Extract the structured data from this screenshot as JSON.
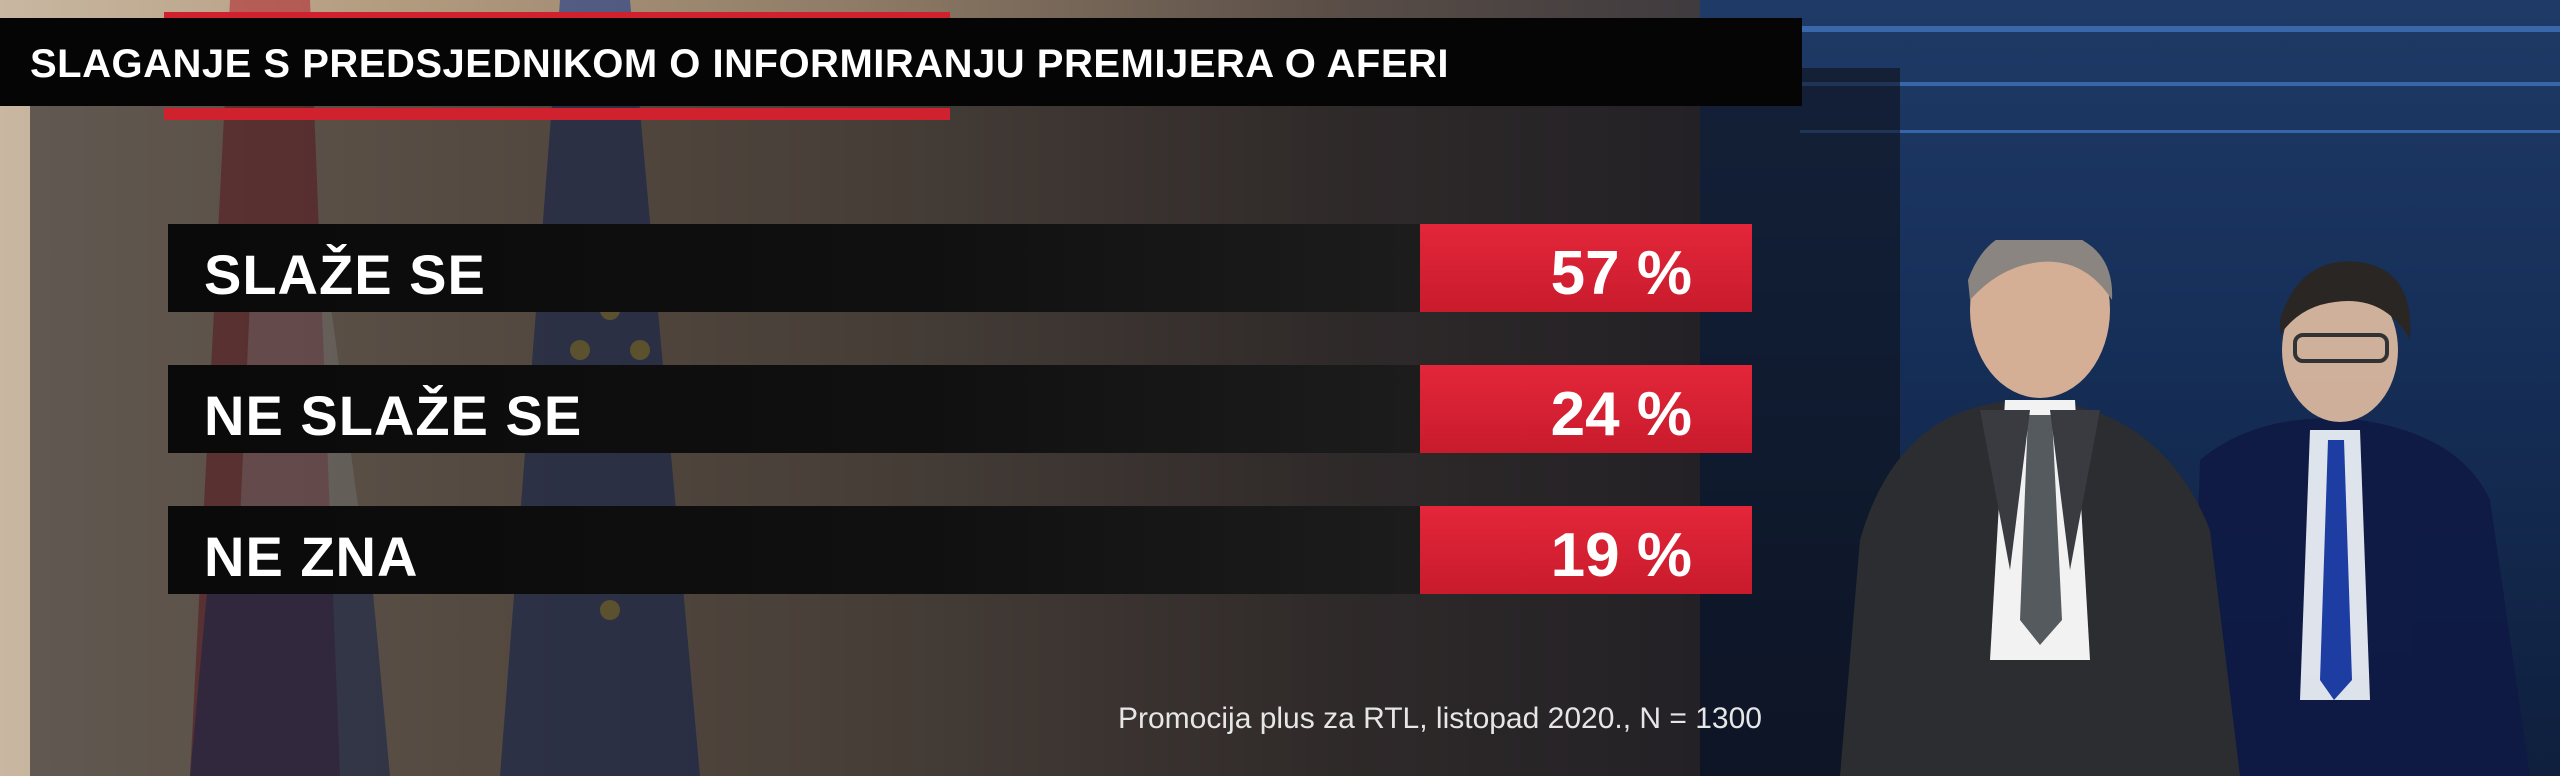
{
  "title": "SLAGANJE S PREDSJEDNIKOM O INFORMIRANJU PREMIJERA O AFERI",
  "source": "Promocija plus za RTL, listopad 2020., N = 1300",
  "colors": {
    "accent": "#d0212f",
    "bar": "#0a0a0a",
    "text": "#ffffff"
  },
  "chart_data": {
    "type": "table",
    "title": "SLAGANJE S PREDSJEDNIKOM O INFORMIRANJU PREMIJERA O AFERI",
    "rows": [
      {
        "label": "SLAŽE SE",
        "value": 57,
        "display": "57 %"
      },
      {
        "label": "NE SLAŽE SE",
        "value": 24,
        "display": "24 %"
      },
      {
        "label": "NE ZNA",
        "value": 19,
        "display": "19 %"
      }
    ],
    "unit": "%"
  }
}
